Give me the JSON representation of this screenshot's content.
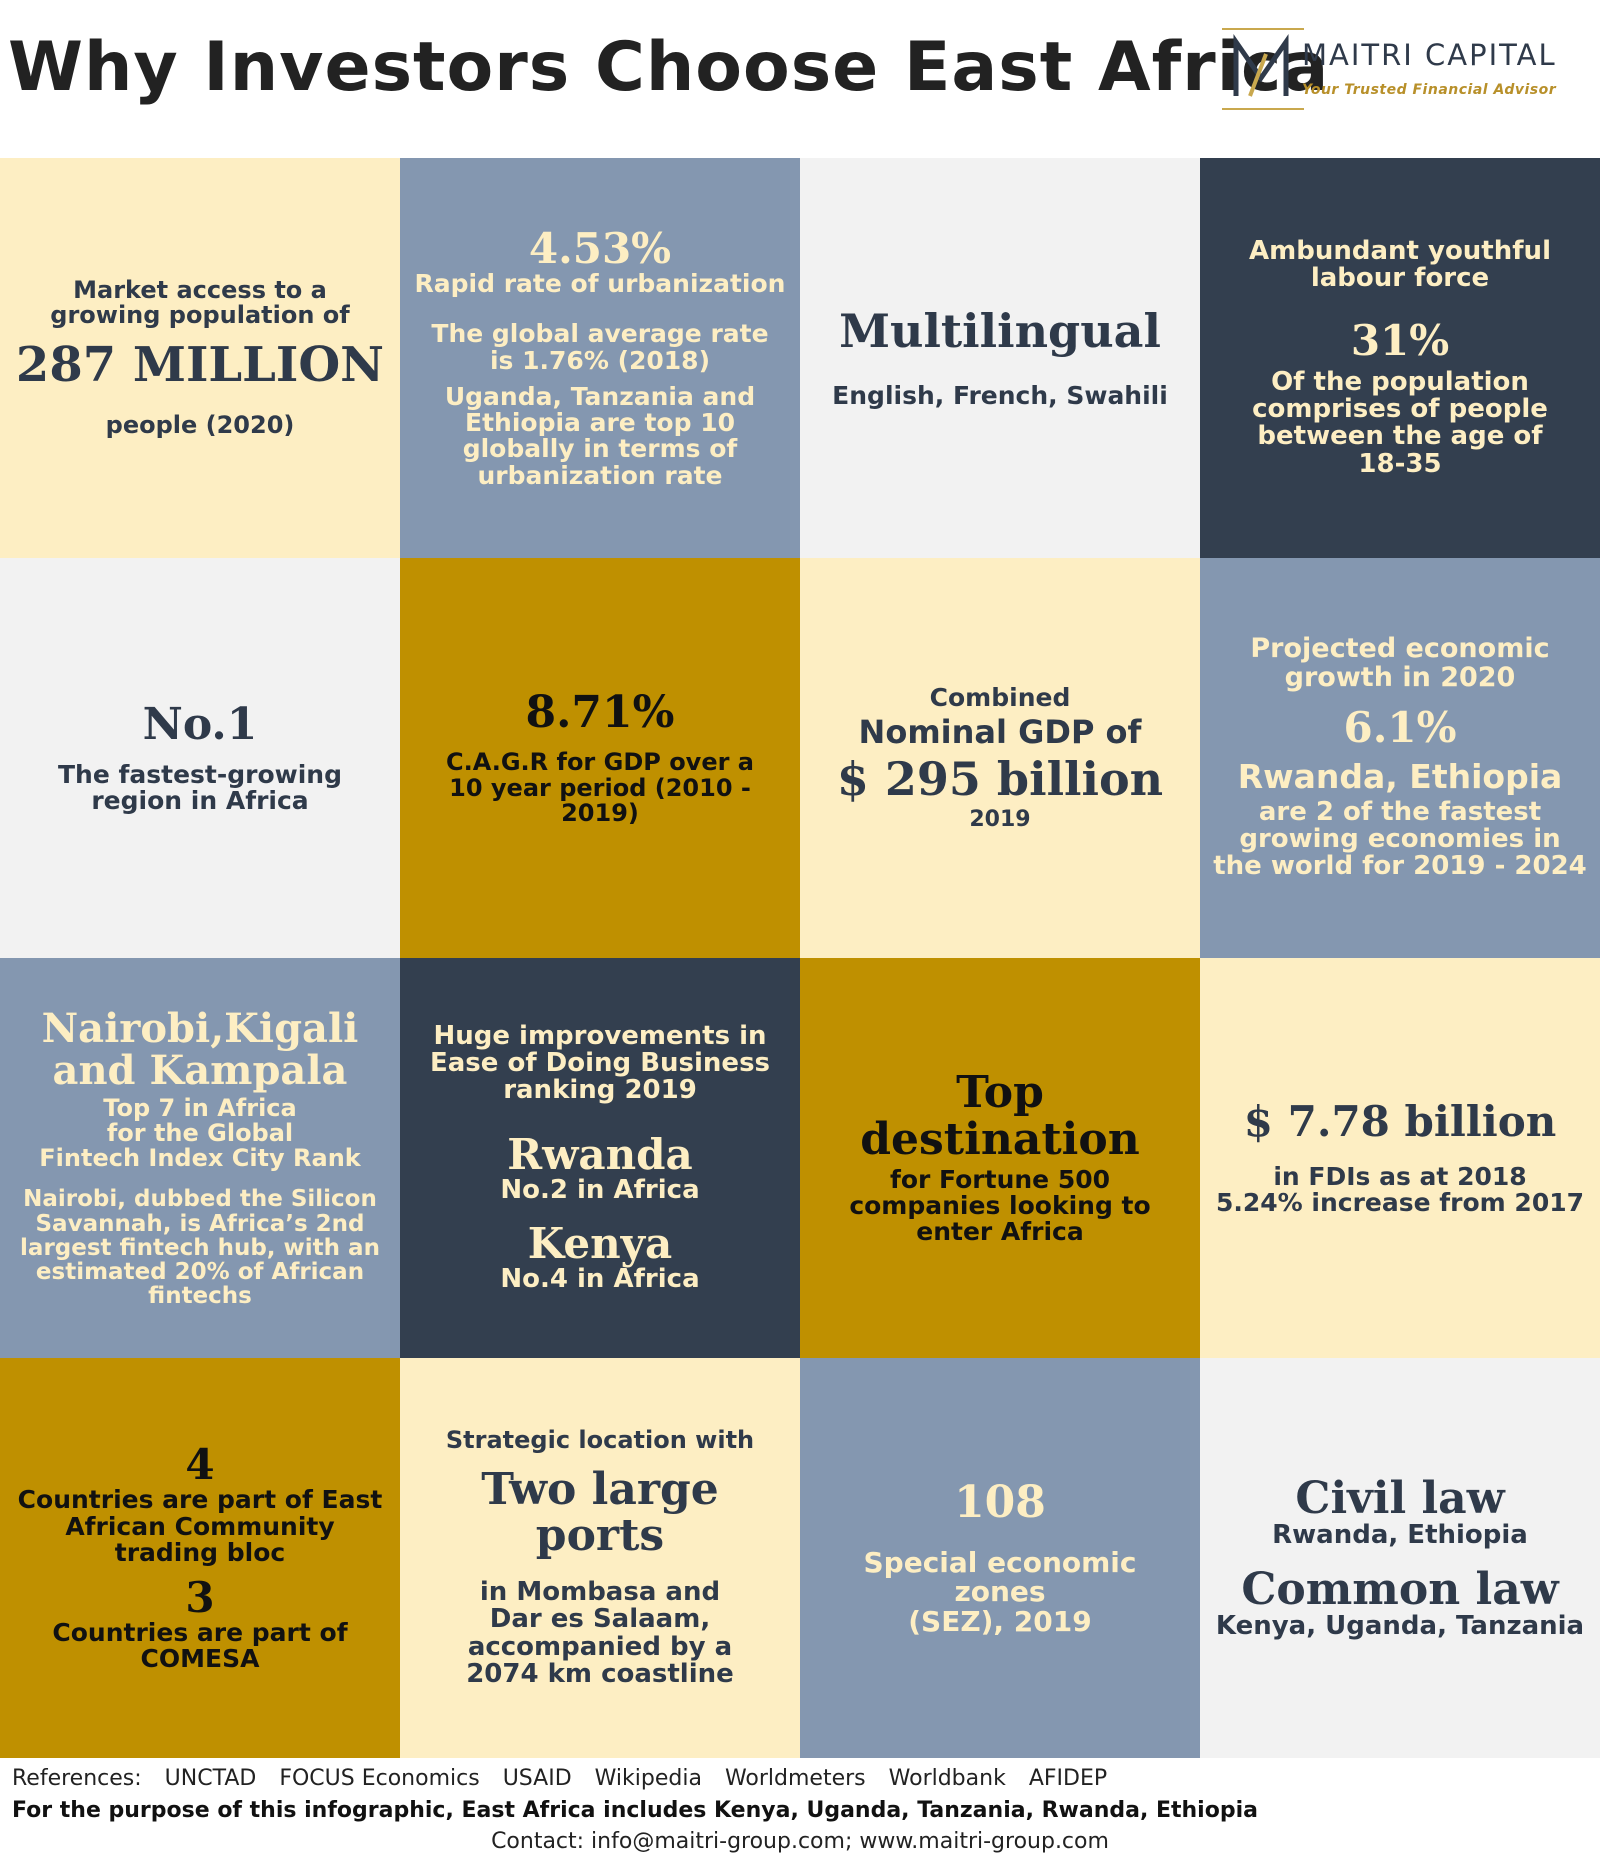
{
  "title": "Why Investors Choose East Africa",
  "logo": {
    "name": "MAITRI CAPITAL",
    "tagline": "Your Trusted Financial Advisor",
    "mark": "M"
  },
  "cells": {
    "population": {
      "line1": "Market access to a",
      "line2": "growing population of",
      "value": "287 MILLION",
      "sub": "people (2020)"
    },
    "urbanization": {
      "value": "4.53%",
      "label": "Rapid rate of urbanization",
      "global1": "The global average rate",
      "global2": "is 1.76% (2018)",
      "note1": "Uganda, Tanzania and",
      "note2": "Ethiopia are top 10",
      "note3": "globally in terms of",
      "note4": "urbanization rate"
    },
    "multilingual": {
      "heading": "Multilingual",
      "languages": "English, French, Swahili"
    },
    "labour": {
      "line1": "Ambundant youthful",
      "line2": "labour force",
      "value": "31%",
      "d1": "Of the population",
      "d2": "comprises of people",
      "d3": "between the age of",
      "d4": "18-35"
    },
    "fastest": {
      "value": "No.1",
      "d1": "The fastest-growing",
      "d2": "region in Africa"
    },
    "cagr": {
      "value": "8.71%",
      "d1": "C.A.G.R for GDP over a",
      "d2": "10 year period (2010 -",
      "d3": "2019)"
    },
    "gdp": {
      "l1": "Combined",
      "l2": "Nominal GDP of",
      "value": "$ 295 billion",
      "year": "2019"
    },
    "growth": {
      "l1": "Projected economic",
      "l2": "growth in 2020",
      "value": "6.1%",
      "countries": "Rwanda, Ethiopia",
      "d1": "are 2 of the fastest",
      "d2": "growing economies in",
      "d3": "the world for 2019 - 2024"
    },
    "fintech": {
      "c1": "Nairobi,Kigali",
      "c2": "and Kampala",
      "d1": "Top 7 in Africa",
      "d2": "for the Global",
      "d3": "Fintech Index City Rank",
      "n1": "Nairobi, dubbed the Silicon",
      "n2": "Savannah, is Africa’s 2nd",
      "n3": "largest fintech hub, with an",
      "n4": "estimated 20% of African",
      "n5": "fintechs"
    },
    "business": {
      "h1": "Huge improvements in",
      "h2": "Ease of Doing Business",
      "h3": "ranking 2019",
      "r1": "Rwanda",
      "r1rank": "No.2 in Africa",
      "r2": "Kenya",
      "r2rank": "No.4 in Africa"
    },
    "destination": {
      "h1": "Top",
      "h2": "destination",
      "d1": "for Fortune 500",
      "d2": "companies looking to",
      "d3": "enter Africa"
    },
    "fdi": {
      "value": "$ 7.78 billion",
      "d1": "in FDIs as at 2018",
      "d2": "5.24% increase from 2017"
    },
    "trade": {
      "n1": "4",
      "t1a": "Countries are part of East",
      "t1b": "African Community",
      "t1c": "trading bloc",
      "n2": "3",
      "t2a": "Countries are part of",
      "t2b": "COMESA"
    },
    "ports": {
      "intro": "Strategic location with",
      "h1": "Two large",
      "h2": "ports",
      "d1": "in Mombasa and",
      "d2": "Dar es Salaam,",
      "d3": "accompanied by a",
      "d4": "2074 km coastline"
    },
    "sez": {
      "value": "108",
      "d1": "Special economic",
      "d2": "zones",
      "d3": "(SEZ), 2019"
    },
    "law": {
      "civil": "Civil law",
      "civil_countries": "Rwanda, Ethiopia",
      "common": "Common law",
      "common_countries": "Kenya, Uganda, Tanzania"
    }
  },
  "footer": {
    "references_label": "References:",
    "references": [
      "UNCTAD",
      "FOCUS Economics",
      "USAID",
      "Wikipedia",
      "Worldmeters",
      "Worldbank",
      "AFIDEP"
    ],
    "purpose": "For the purpose of this infographic, East Africa includes Kenya, Uganda, Tanzania, Rwanda, Ethiopia",
    "contact": "Contact: info@maitri-group.com; www.maitri-group.com"
  },
  "colors": {
    "cream": "#fdeec3",
    "slate": "#8497b0",
    "light": "#f2f2f2",
    "dark": "#333f4f",
    "gold": "#bf9000",
    "navy_text": "#2f3a4a"
  }
}
